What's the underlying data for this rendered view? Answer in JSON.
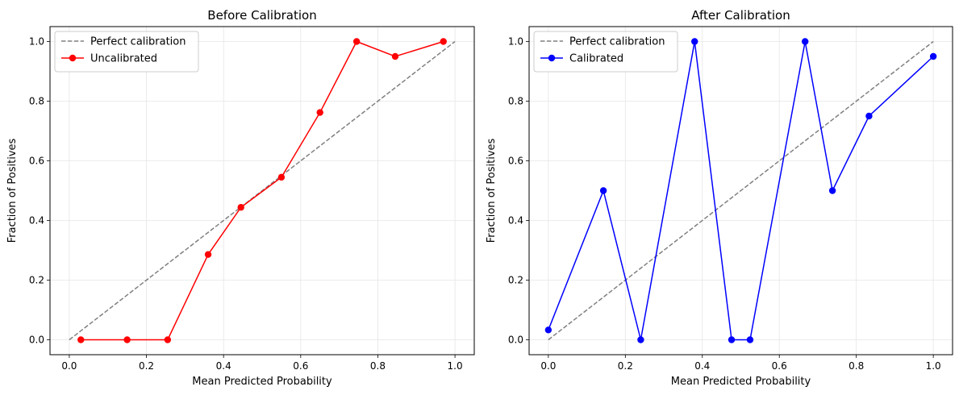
{
  "chart_data": [
    {
      "type": "line",
      "title": "Before Calibration",
      "xlabel": "Mean Predicted Probability",
      "ylabel": "Fraction of Positives",
      "xlim": [
        -0.05,
        1.05
      ],
      "ylim": [
        -0.05,
        1.05
      ],
      "xticks": [
        "0.0",
        "0.2",
        "0.4",
        "0.6",
        "0.8",
        "1.0"
      ],
      "yticks": [
        "0.0",
        "0.2",
        "0.4",
        "0.6",
        "0.8",
        "1.0"
      ],
      "grid": true,
      "legend_position": "top-left",
      "series": [
        {
          "name": "Perfect calibration",
          "style": "dashed",
          "color": "#808080",
          "x": [
            0,
            1
          ],
          "y": [
            0,
            1
          ]
        },
        {
          "name": "Uncalibrated",
          "style": "solid-markers",
          "color": "#ff0000",
          "x": [
            0.03,
            0.15,
            0.255,
            0.36,
            0.445,
            0.55,
            0.65,
            0.745,
            0.845,
            0.97
          ],
          "y": [
            0.0,
            0.0,
            0.0,
            0.286,
            0.444,
            0.545,
            0.762,
            1.0,
            0.95,
            1.0
          ]
        }
      ]
    },
    {
      "type": "line",
      "title": "After Calibration",
      "xlabel": "Mean Predicted Probability",
      "ylabel": "Fraction of Positives",
      "xlim": [
        -0.05,
        1.05
      ],
      "ylim": [
        -0.05,
        1.05
      ],
      "xticks": [
        "0.0",
        "0.2",
        "0.4",
        "0.6",
        "0.8",
        "1.0"
      ],
      "yticks": [
        "0.0",
        "0.2",
        "0.4",
        "0.6",
        "0.8",
        "1.0"
      ],
      "grid": true,
      "legend_position": "top-left",
      "series": [
        {
          "name": "Perfect calibration",
          "style": "dashed",
          "color": "#808080",
          "x": [
            0,
            1
          ],
          "y": [
            0,
            1
          ]
        },
        {
          "name": "Calibrated",
          "style": "solid-markers",
          "color": "#0000ff",
          "x": [
            0.0,
            0.143,
            0.24,
            0.38,
            0.476,
            0.524,
            0.667,
            0.738,
            0.833,
            1.0
          ],
          "y": [
            0.033,
            0.5,
            0.0,
            1.0,
            0.0,
            0.0,
            1.0,
            0.5,
            0.75,
            0.95
          ]
        }
      ]
    }
  ]
}
